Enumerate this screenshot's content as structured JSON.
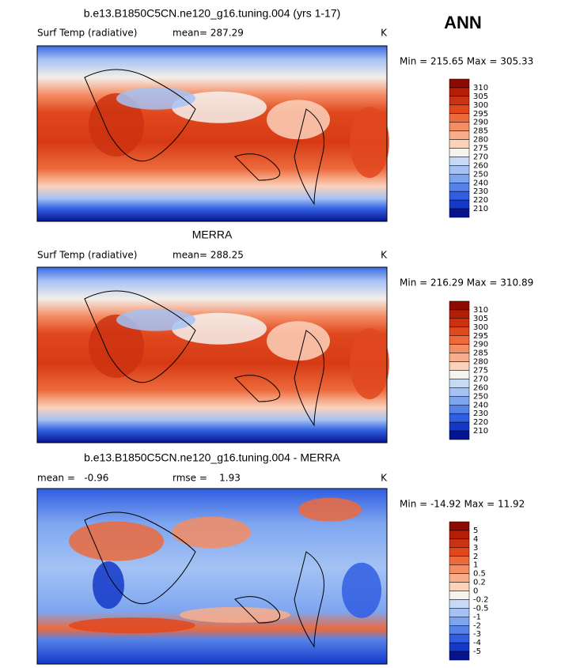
{
  "header": {
    "season": "ANN"
  },
  "panels": [
    {
      "title": "b.e13.B1850C5CN.ne120_g16.tuning.004 (yrs 1-17)",
      "labels": [
        "Surf Temp (radiative)",
        "mean= 287.29"
      ],
      "units": "K",
      "range": "Min = 215.65 Max = 305.33",
      "colorbar": {
        "labels": [
          "310",
          "305",
          "300",
          "295",
          "290",
          "285",
          "280",
          "275",
          "270",
          "260",
          "250",
          "240",
          "230",
          "220",
          "210"
        ],
        "colors": [
          "#8c0a00",
          "#b41e05",
          "#cc3210",
          "#e0481e",
          "#ec6a3c",
          "#f48c64",
          "#f8ae8c",
          "#fcd2bc",
          "#f6f2ee",
          "#c6daf6",
          "#a4c2f4",
          "#7ea6f0",
          "#5582e8",
          "#305ee0",
          "#1438c8",
          "#061490"
        ]
      }
    },
    {
      "title": "MERRA",
      "labels": [
        "Surf Temp (radiative)",
        "mean= 288.25"
      ],
      "units": "K",
      "range": "Min = 216.29 Max = 310.89",
      "colorbar": {
        "labels": [
          "310",
          "305",
          "300",
          "295",
          "290",
          "285",
          "280",
          "275",
          "270",
          "260",
          "250",
          "240",
          "230",
          "220",
          "210"
        ],
        "colors": [
          "#8c0a00",
          "#b41e05",
          "#cc3210",
          "#e0481e",
          "#ec6a3c",
          "#f48c64",
          "#f8ae8c",
          "#fcd2bc",
          "#f6f2ee",
          "#c6daf6",
          "#a4c2f4",
          "#7ea6f0",
          "#5582e8",
          "#305ee0",
          "#1438c8",
          "#061490"
        ]
      }
    },
    {
      "title": "b.e13.B1850C5CN.ne120_g16.tuning.004 - MERRA",
      "labels": [
        "mean =   -0.96",
        "rmse =    1.93"
      ],
      "units": "K",
      "range": "Min = -14.92 Max = 11.92",
      "colorbar": {
        "labels": [
          "5",
          "4",
          "3",
          "2",
          "1",
          "0.5",
          "0.2",
          "0",
          "-0.2",
          "-0.5",
          "-1",
          "-2",
          "-3",
          "-4",
          "-5"
        ],
        "colors": [
          "#8c0a00",
          "#b41e05",
          "#cc3210",
          "#e0481e",
          "#ec6a3c",
          "#f48c64",
          "#f8ae8c",
          "#fcd2bc",
          "#f6f2ee",
          "#c6daf6",
          "#a4c2f4",
          "#7ea6f0",
          "#5582e8",
          "#305ee0",
          "#1438c8",
          "#061490"
        ]
      }
    }
  ]
}
